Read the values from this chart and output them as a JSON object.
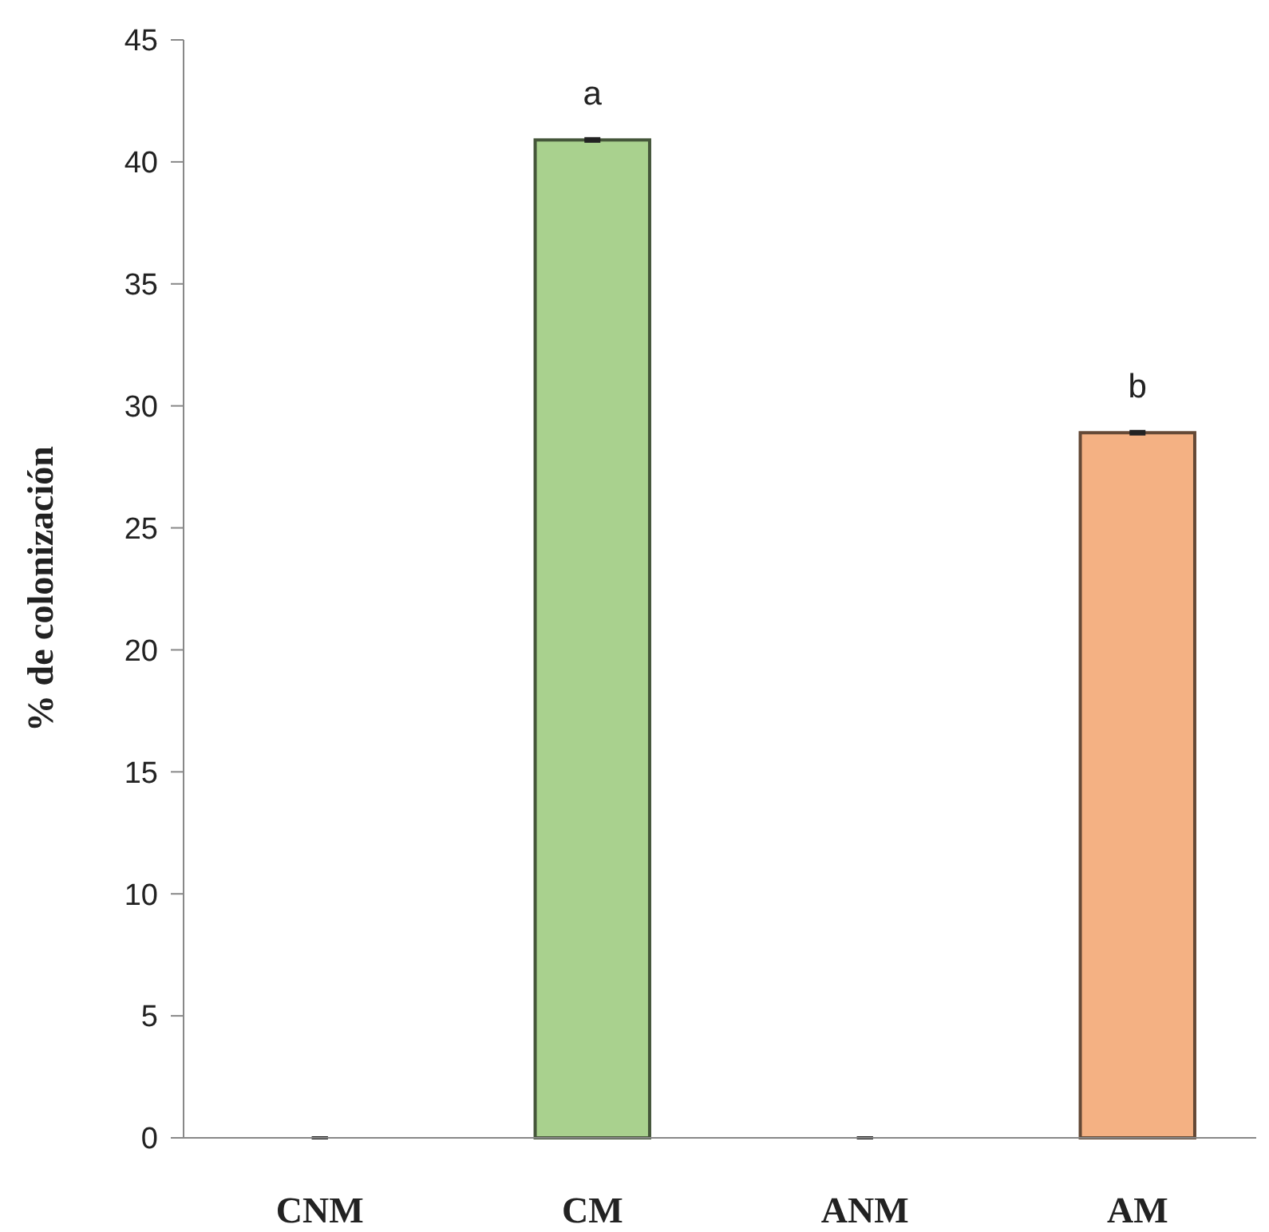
{
  "chart_data": {
    "type": "bar",
    "ylabel": "% de colonización",
    "categories": [
      "CNM",
      "CM",
      "ANM",
      "AM"
    ],
    "values": [
      0,
      40.9,
      0,
      28.9
    ],
    "errors": [
      [
        0,
        0
      ],
      0.05,
      [
        0,
        0
      ],
      0.05
    ],
    "colors": [
      "#a9d18e",
      "#a9d18e",
      "#f4b183",
      "#f4b183"
    ],
    "ylim": [
      0,
      45
    ],
    "yticks": [
      0,
      5,
      10,
      15,
      20,
      25,
      30,
      35,
      40,
      45
    ],
    "grid": false,
    "annotations": [
      {
        "text": "a",
        "x": "CM",
        "y": 40.9
      },
      {
        "text": "b",
        "x": "AM",
        "y": 28.9
      }
    ]
  }
}
